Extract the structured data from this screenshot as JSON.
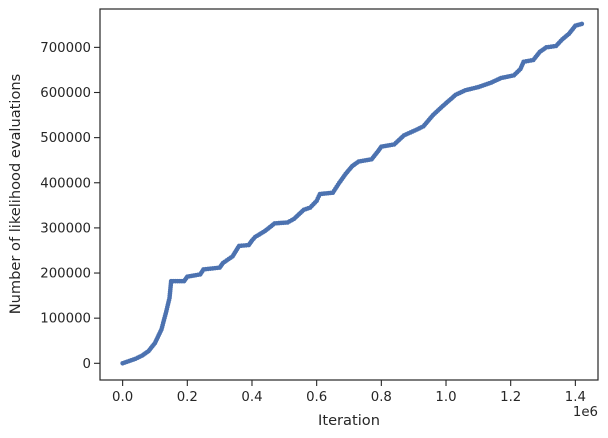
{
  "chart_data": {
    "type": "scatter",
    "title": "",
    "xlabel": "Iteration",
    "ylabel": "Number of likelihood evaluations",
    "x_offset_label": "1e6",
    "xlim": [
      -0.07,
      1.47
    ],
    "ylim": [
      -37000,
      785000
    ],
    "x_ticks": [
      {
        "value": 0.0,
        "label": "0.0"
      },
      {
        "value": 0.2,
        "label": "0.2"
      },
      {
        "value": 0.4,
        "label": "0.4"
      },
      {
        "value": 0.6,
        "label": "0.6"
      },
      {
        "value": 0.8,
        "label": "0.8"
      },
      {
        "value": 1.0,
        "label": "1.0"
      },
      {
        "value": 1.2,
        "label": "1.2"
      },
      {
        "value": 1.4,
        "label": "1.4"
      }
    ],
    "y_ticks": [
      {
        "value": 0,
        "label": "0"
      },
      {
        "value": 100000,
        "label": "100000"
      },
      {
        "value": 200000,
        "label": "200000"
      },
      {
        "value": 300000,
        "label": "300000"
      },
      {
        "value": 400000,
        "label": "400000"
      },
      {
        "value": 500000,
        "label": "500000"
      },
      {
        "value": 600000,
        "label": "600000"
      },
      {
        "value": 700000,
        "label": "700000"
      }
    ],
    "grid": false,
    "marker_color": "#4c72b0",
    "curve_points": [
      [
        0.0,
        0
      ],
      [
        0.02,
        5000
      ],
      [
        0.04,
        10000
      ],
      [
        0.06,
        17000
      ],
      [
        0.08,
        27000
      ],
      [
        0.1,
        45000
      ],
      [
        0.12,
        75000
      ],
      [
        0.135,
        115000
      ],
      [
        0.145,
        145000
      ],
      [
        0.15,
        182000
      ],
      [
        0.19,
        182000
      ],
      [
        0.2,
        192000
      ],
      [
        0.24,
        197000
      ],
      [
        0.25,
        208000
      ],
      [
        0.3,
        212000
      ],
      [
        0.31,
        222000
      ],
      [
        0.34,
        237000
      ],
      [
        0.36,
        260000
      ],
      [
        0.39,
        262000
      ],
      [
        0.4,
        272000
      ],
      [
        0.41,
        280000
      ],
      [
        0.44,
        293000
      ],
      [
        0.47,
        310000
      ],
      [
        0.51,
        312000
      ],
      [
        0.53,
        320000
      ],
      [
        0.56,
        340000
      ],
      [
        0.58,
        345000
      ],
      [
        0.6,
        360000
      ],
      [
        0.61,
        375000
      ],
      [
        0.65,
        378000
      ],
      [
        0.67,
        400000
      ],
      [
        0.69,
        420000
      ],
      [
        0.71,
        437000
      ],
      [
        0.73,
        447000
      ],
      [
        0.77,
        452000
      ],
      [
        0.79,
        470000
      ],
      [
        0.8,
        480000
      ],
      [
        0.84,
        485000
      ],
      [
        0.87,
        505000
      ],
      [
        0.91,
        518000
      ],
      [
        0.93,
        525000
      ],
      [
        0.96,
        550000
      ],
      [
        0.99,
        570000
      ],
      [
        1.03,
        595000
      ],
      [
        1.06,
        605000
      ],
      [
        1.1,
        612000
      ],
      [
        1.14,
        622000
      ],
      [
        1.17,
        632000
      ],
      [
        1.21,
        638000
      ],
      [
        1.23,
        652000
      ],
      [
        1.24,
        668000
      ],
      [
        1.27,
        672000
      ],
      [
        1.29,
        690000
      ],
      [
        1.31,
        700000
      ],
      [
        1.34,
        703000
      ],
      [
        1.36,
        718000
      ],
      [
        1.38,
        730000
      ],
      [
        1.4,
        748000
      ],
      [
        1.42,
        752000
      ]
    ]
  }
}
